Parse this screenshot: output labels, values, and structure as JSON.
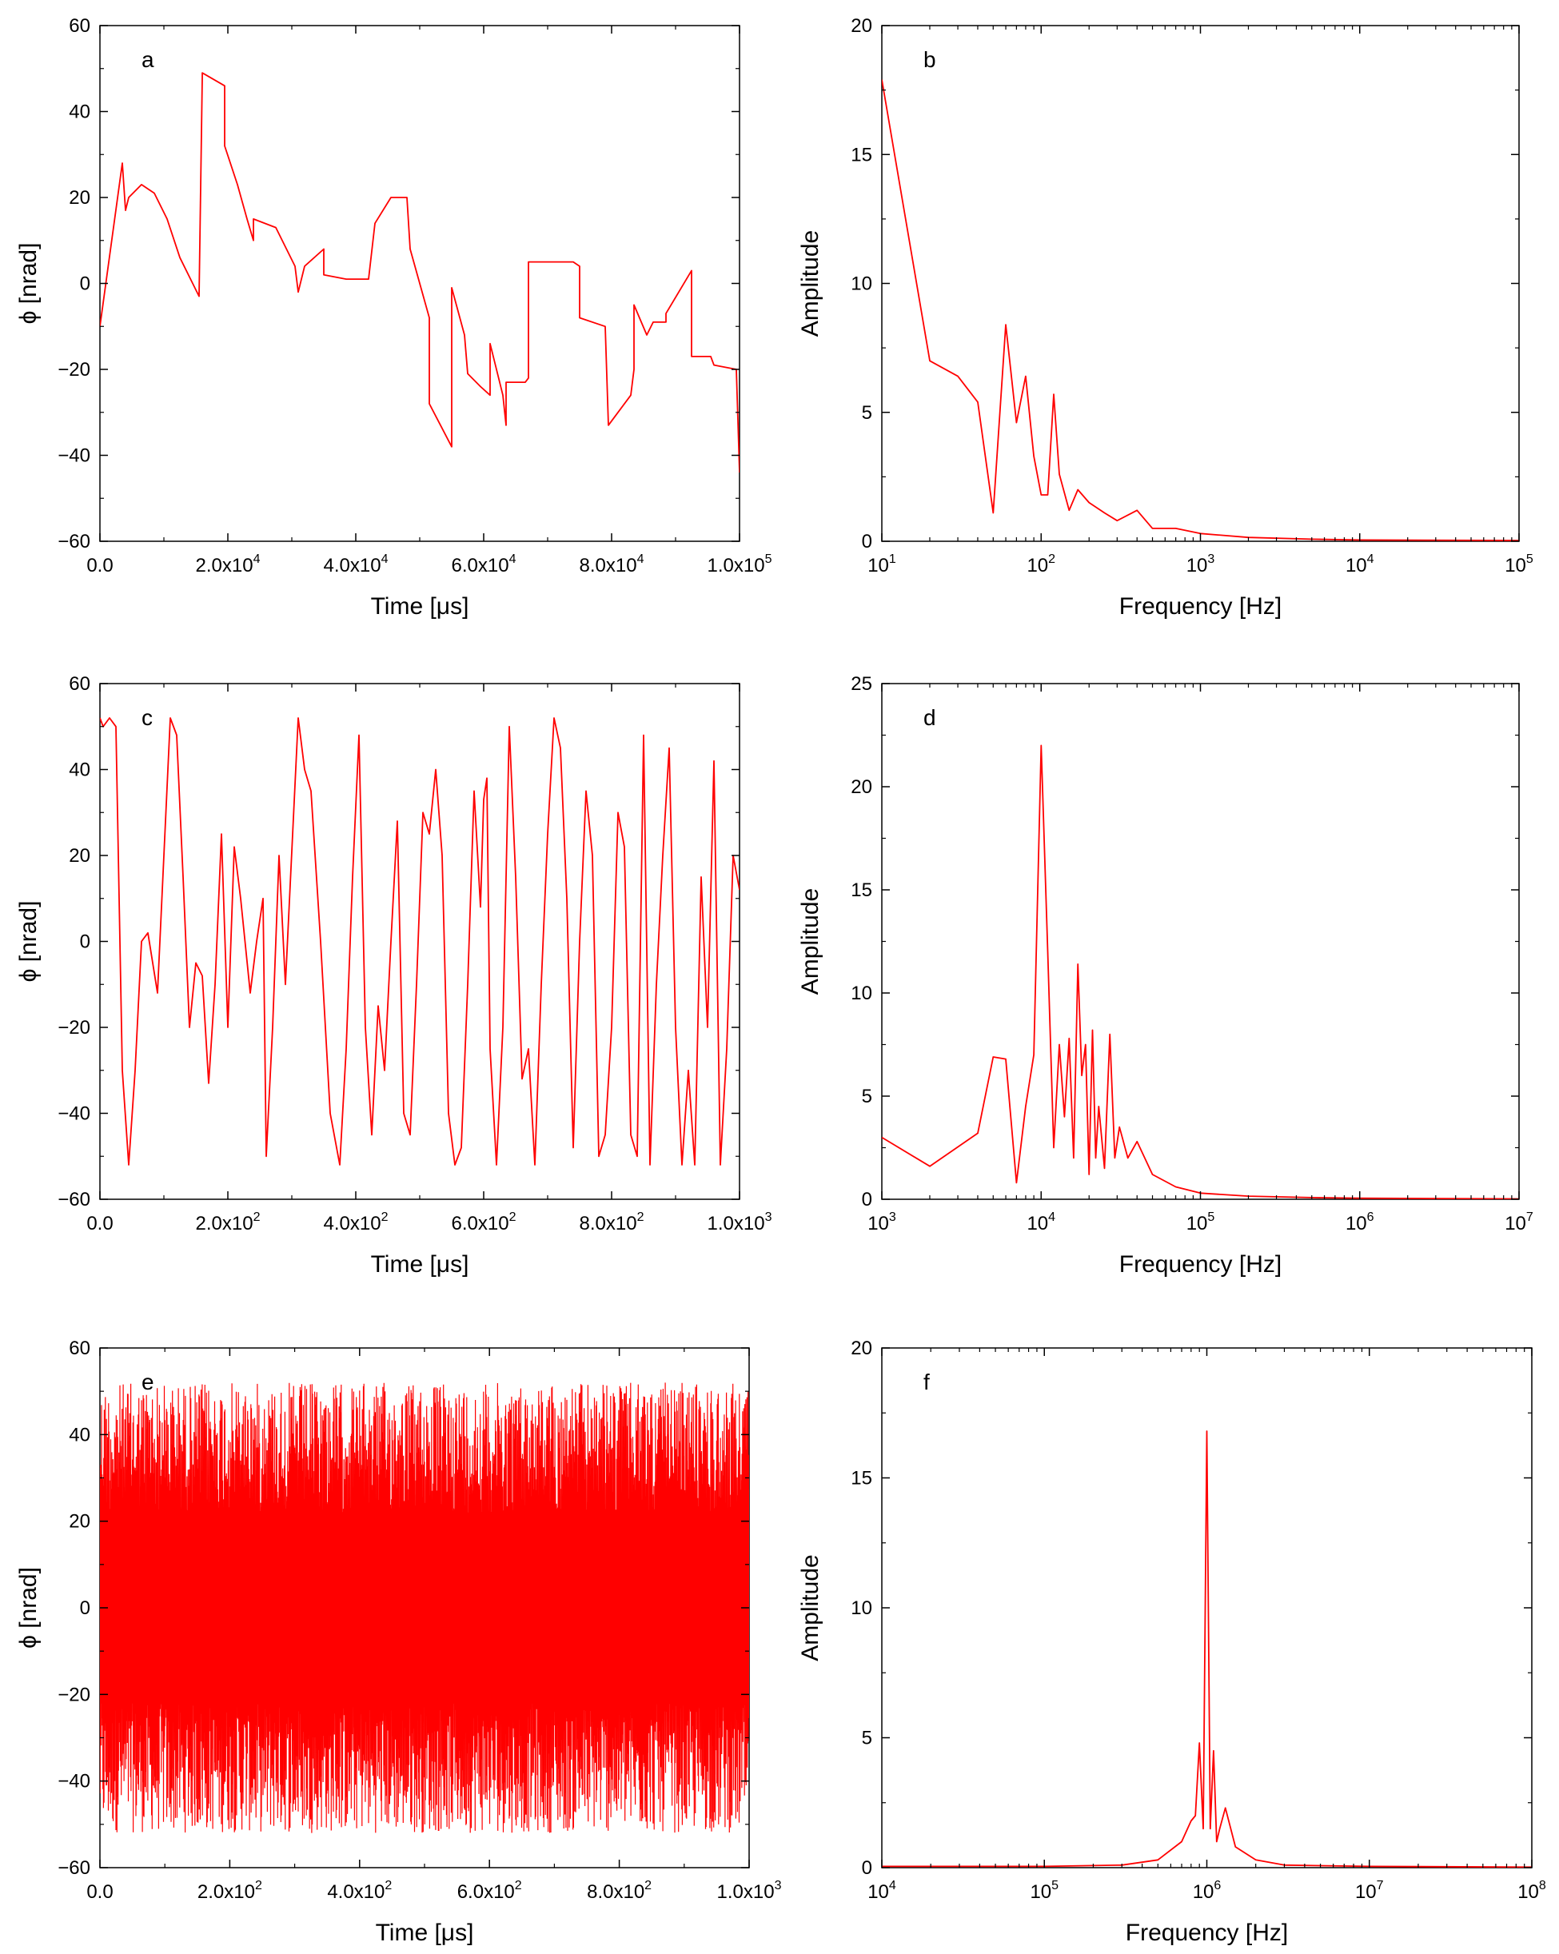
{
  "figure": {
    "line_color": "#ff0000",
    "axis_color": "#000000"
  },
  "chart_data": [
    {
      "panel_label": "a",
      "type": "line",
      "x_scale": "linear",
      "xlabel": "Time [μs]",
      "ylabel": "ϕ [nrad]",
      "xlim": [
        0,
        100000
      ],
      "ylim": [
        -60,
        60
      ],
      "x_ticks": [
        0,
        20000,
        40000,
        60000,
        80000,
        100000
      ],
      "x_tick_labels": [
        [
          "0.0",
          ""
        ],
        [
          "2.0x10",
          "4"
        ],
        [
          "4.0x10",
          "4"
        ],
        [
          "6.0x10",
          "4"
        ],
        [
          "8.0x10",
          "4"
        ],
        [
          "1.0x10",
          "5"
        ]
      ],
      "y_ticks": [
        -60,
        -40,
        -20,
        0,
        20,
        40,
        60
      ],
      "y_tick_labels": [
        "−60",
        "−40",
        "−20",
        "0",
        "20",
        "40",
        "60"
      ],
      "x": [
        0,
        3500,
        4000,
        4500,
        6500,
        8500,
        10500,
        12500,
        14500,
        15500,
        16000,
        16000,
        19500,
        19500,
        21500,
        23000,
        24000,
        24000,
        27500,
        27500,
        30500,
        31000,
        32000,
        32000,
        35000,
        35000,
        38500,
        38500,
        42000,
        43000,
        43000,
        45500,
        48000,
        48500,
        48500,
        51500,
        51500,
        55000,
        55000,
        57000,
        57500,
        59500,
        61000,
        61000,
        63000,
        63500,
        63500,
        66500,
        67000,
        67000,
        74000,
        75000,
        75000,
        79000,
        79500,
        79500,
        83000,
        83500,
        83500,
        85500,
        86500,
        88500,
        88500,
        92500,
        92500,
        95500,
        96000,
        99500,
        100000
      ],
      "y": [
        -10,
        28,
        17,
        20,
        23,
        21,
        15,
        6,
        0,
        -3,
        48,
        49,
        46,
        32,
        23,
        15,
        10,
        15,
        13,
        13,
        4,
        -2,
        4,
        4,
        8,
        2,
        1,
        1,
        1,
        14,
        14,
        20,
        20,
        8,
        8,
        -8,
        -28,
        -38,
        -1,
        -12,
        -21,
        -24,
        -26,
        -14,
        -26,
        -33,
        -23,
        -23,
        -22,
        5,
        5,
        4,
        -8,
        -10,
        -33,
        -33,
        -26,
        -20,
        -5,
        -12,
        -9,
        -9,
        -7,
        3,
        -17,
        -17,
        -19,
        -20,
        -44
      ]
    },
    {
      "panel_label": "b",
      "type": "line",
      "x_scale": "log",
      "xlabel": "Frequency [Hz]",
      "ylabel": "Amplitude",
      "xlim": [
        10,
        100000
      ],
      "ylim": [
        0,
        20
      ],
      "x_ticks": [
        10,
        100,
        1000,
        10000,
        100000
      ],
      "x_tick_labels": [
        [
          "10",
          "1"
        ],
        [
          "10",
          "2"
        ],
        [
          "10",
          "3"
        ],
        [
          "10",
          "4"
        ],
        [
          "10",
          "5"
        ]
      ],
      "y_ticks": [
        0,
        5,
        10,
        15,
        20
      ],
      "y_tick_labels": [
        "0",
        "5",
        "10",
        "15",
        "20"
      ],
      "x": [
        10,
        20,
        30,
        40,
        50,
        60,
        70,
        80,
        90,
        100,
        110,
        120,
        130,
        150,
        170,
        200,
        250,
        300,
        400,
        500,
        700,
        1000,
        2000,
        5000,
        10000,
        100000
      ],
      "y": [
        17.9,
        7.0,
        6.4,
        5.4,
        1.1,
        8.4,
        4.6,
        6.4,
        3.3,
        1.8,
        1.8,
        5.7,
        2.6,
        1.2,
        2.0,
        1.5,
        1.1,
        0.8,
        1.2,
        0.5,
        0.5,
        0.3,
        0.15,
        0.08,
        0.05,
        0.03
      ]
    },
    {
      "panel_label": "c",
      "type": "line",
      "x_scale": "linear",
      "xlabel": "Time [μs]",
      "ylabel": "ϕ [nrad]",
      "xlim": [
        0,
        1000
      ],
      "ylim": [
        -60,
        60
      ],
      "x_ticks": [
        0,
        200,
        400,
        600,
        800,
        1000
      ],
      "x_tick_labels": [
        [
          "0.0",
          ""
        ],
        [
          "2.0x10",
          "2"
        ],
        [
          "4.0x10",
          "2"
        ],
        [
          "6.0x10",
          "2"
        ],
        [
          "8.0x10",
          "2"
        ],
        [
          "1.0x10",
          "3"
        ]
      ],
      "y_ticks": [
        -60,
        -40,
        -20,
        0,
        20,
        40,
        60
      ],
      "y_tick_labels": [
        "−60",
        "−40",
        "−20",
        "0",
        "20",
        "40",
        "60"
      ],
      "x": [
        0,
        5,
        15,
        25,
        35,
        45,
        55,
        65,
        75,
        90,
        100,
        110,
        120,
        130,
        140,
        150,
        160,
        170,
        180,
        190,
        200,
        210,
        220,
        235,
        245,
        255,
        260,
        270,
        280,
        290,
        310,
        320,
        330,
        345,
        360,
        375,
        385,
        395,
        405,
        415,
        425,
        435,
        445,
        455,
        465,
        475,
        485,
        495,
        505,
        515,
        525,
        535,
        545,
        555,
        565,
        575,
        585,
        595,
        600,
        605,
        610,
        620,
        630,
        640,
        650,
        660,
        670,
        680,
        690,
        700,
        710,
        720,
        730,
        740,
        750,
        760,
        770,
        780,
        790,
        800,
        810,
        820,
        830,
        840,
        850,
        860,
        870,
        880,
        890,
        900,
        910,
        920,
        930,
        940,
        950,
        960,
        970,
        980,
        990,
        1000
      ],
      "y": [
        52,
        50,
        52,
        50,
        -30,
        -52,
        -30,
        0,
        2,
        -12,
        20,
        52,
        48,
        15,
        -20,
        -5,
        -8,
        -33,
        -10,
        25,
        -20,
        22,
        10,
        -12,
        0,
        10,
        -50,
        -20,
        20,
        -10,
        52,
        40,
        35,
        0,
        -40,
        -52,
        -25,
        15,
        48,
        -20,
        -45,
        -15,
        -30,
        0,
        28,
        -40,
        -45,
        -10,
        30,
        25,
        40,
        20,
        -40,
        -52,
        -48,
        -10,
        35,
        8,
        33,
        38,
        -25,
        -52,
        -20,
        50,
        15,
        -32,
        -25,
        -52,
        -10,
        25,
        52,
        45,
        10,
        -48,
        0,
        35,
        20,
        -50,
        -45,
        -20,
        30,
        22,
        -45,
        -50,
        48,
        -52,
        -10,
        20,
        45,
        -20,
        -52,
        -30,
        -52,
        15,
        -20,
        42,
        -52,
        -25,
        20,
        12
      ]
    },
    {
      "panel_label": "d",
      "type": "line",
      "x_scale": "log",
      "xlabel": "Frequency [Hz]",
      "ylabel": "Amplitude",
      "xlim": [
        1000,
        10000000
      ],
      "ylim": [
        0,
        25
      ],
      "x_ticks": [
        1000,
        10000,
        100000,
        1000000,
        10000000
      ],
      "x_tick_labels": [
        [
          "10",
          "3"
        ],
        [
          "10",
          "4"
        ],
        [
          "10",
          "5"
        ],
        [
          "10",
          "6"
        ],
        [
          "10",
          "7"
        ]
      ],
      "y_ticks": [
        0,
        5,
        10,
        15,
        20,
        25
      ],
      "y_tick_labels": [
        "0",
        "5",
        "10",
        "15",
        "20",
        "25"
      ],
      "x": [
        1000,
        2000,
        4000,
        5000,
        6000,
        7000,
        8000,
        9000,
        10000,
        11000,
        12000,
        13000,
        14000,
        15000,
        16000,
        17000,
        18000,
        19000,
        20000,
        21000,
        22000,
        23000,
        25000,
        27000,
        29000,
        31000,
        35000,
        40000,
        50000,
        70000,
        100000,
        200000,
        500000,
        1000000,
        10000000
      ],
      "y": [
        3.0,
        1.6,
        3.2,
        6.9,
        6.8,
        0.8,
        4.5,
        7.0,
        22.0,
        12.0,
        2.5,
        7.5,
        4.0,
        7.8,
        2.0,
        11.4,
        6.0,
        7.5,
        1.2,
        8.2,
        2.0,
        4.5,
        1.5,
        8.0,
        2.0,
        3.5,
        2.0,
        2.8,
        1.2,
        0.6,
        0.3,
        0.15,
        0.08,
        0.05,
        0.02
      ]
    },
    {
      "panel_label": "e",
      "type": "line",
      "x_scale": "linear",
      "xlabel": "Time [μs]",
      "ylabel": "ϕ [nrad]",
      "xlim": [
        0,
        1000
      ],
      "ylim": [
        -60,
        60
      ],
      "x_ticks": [
        0,
        200,
        400,
        600,
        800,
        1000
      ],
      "x_tick_labels": [
        [
          "0.0",
          ""
        ],
        [
          "2.0x10",
          "2"
        ],
        [
          "4.0x10",
          "2"
        ],
        [
          "6.0x10",
          "2"
        ],
        [
          "8.0x10",
          "2"
        ],
        [
          "1.0x10",
          "3"
        ]
      ],
      "y_ticks": [
        -60,
        -40,
        -20,
        0,
        20,
        40,
        60
      ],
      "y_tick_labels": [
        "−60",
        "−40",
        "−20",
        "0",
        "20",
        "40",
        "60"
      ],
      "x": [
        0,
        1000
      ],
      "y_range": [
        -52,
        52
      ]
    },
    {
      "panel_label": "f",
      "type": "line",
      "x_scale": "log",
      "xlabel": "Frequency [Hz]",
      "ylabel": "Amplitude",
      "xlim": [
        10000,
        100000000
      ],
      "ylim": [
        0,
        20
      ],
      "x_ticks": [
        10000,
        100000,
        1000000,
        10000000,
        100000000
      ],
      "x_tick_labels": [
        [
          "10",
          "4"
        ],
        [
          "10",
          "5"
        ],
        [
          "10",
          "6"
        ],
        [
          "10",
          "7"
        ],
        [
          "10",
          "8"
        ]
      ],
      "y_ticks": [
        0,
        5,
        10,
        15,
        20
      ],
      "y_tick_labels": [
        "0",
        "5",
        "10",
        "15",
        "20"
      ],
      "x": [
        10000,
        100000,
        300000,
        500000,
        700000,
        800000,
        850000,
        900000,
        950000,
        1000000,
        1050000,
        1100000,
        1150000,
        1200000,
        1300000,
        1500000,
        2000000,
        3000000,
        10000000,
        100000000
      ],
      "y": [
        0.05,
        0.05,
        0.1,
        0.3,
        1.0,
        1.8,
        2.0,
        4.8,
        1.5,
        16.8,
        1.5,
        4.5,
        1.0,
        1.5,
        2.3,
        0.8,
        0.3,
        0.1,
        0.05,
        0.02
      ]
    }
  ]
}
